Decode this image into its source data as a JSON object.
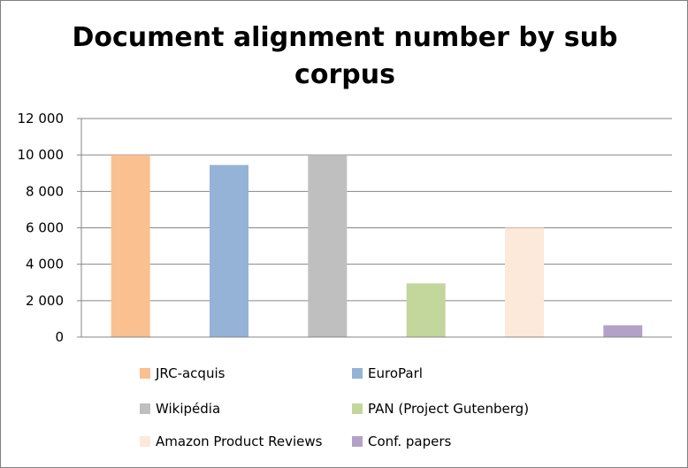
{
  "chart_data": {
    "type": "bar",
    "title": "Document alignment number by sub corpus",
    "xlabel": "",
    "ylabel": "",
    "ylim": [
      0,
      12000
    ],
    "yticks": [
      0,
      2000,
      4000,
      6000,
      8000,
      10000,
      12000
    ],
    "ytick_labels": [
      "0",
      "2 000",
      "4 000",
      "6 000",
      "8 000",
      "10 000",
      "12 000"
    ],
    "grid": true,
    "legend_position": "bottom",
    "categories": [
      "JRC-acquis",
      "EuroParl",
      "Wikipédia",
      "PAN (Project Gutenberg)",
      "Amazon Product Reviews",
      "Conf. papers"
    ],
    "values": [
      10000,
      9450,
      10000,
      2950,
      6000,
      650
    ],
    "colors": [
      "#FAC090",
      "#95B3D7",
      "#BFBFBF",
      "#C3D69B",
      "#FDE9D9",
      "#B3A2C7"
    ]
  }
}
